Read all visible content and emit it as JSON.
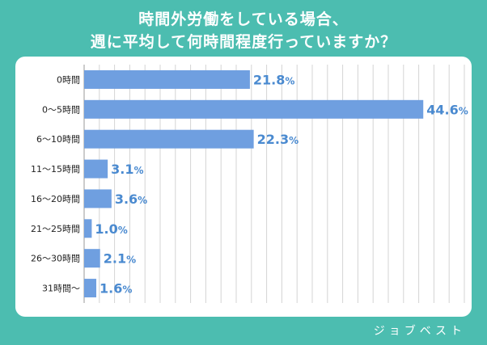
{
  "title_line1": "時間外労働をしている場合、",
  "title_line2": "週に平均して何時間程度行っていますか？",
  "brand": "ジョブベスト",
  "colors": {
    "background": "#4cbdb0",
    "bar": "#6f9fe0",
    "value_text": "#4a8ad0",
    "label_text": "#222222",
    "grid": "#d4d4d4"
  },
  "chart_data": {
    "type": "bar",
    "orientation": "horizontal",
    "title": "時間外労働をしている場合、週に平均して何時間程度行っていますか？",
    "categories": [
      "0時間",
      "0〜5時間",
      "6〜10時間",
      "11〜15時間",
      "16〜20時間",
      "21〜25時間",
      "26〜30時間",
      "31時間〜"
    ],
    "values": [
      21.8,
      44.6,
      22.3,
      3.1,
      3.6,
      1.0,
      2.1,
      1.6
    ],
    "value_labels": [
      "21.8",
      "44.6",
      "22.3",
      "3.1",
      "3.6",
      "1.0",
      "2.1",
      "1.6"
    ],
    "unit": "%",
    "xlim": [
      0,
      50
    ],
    "grid": true
  }
}
